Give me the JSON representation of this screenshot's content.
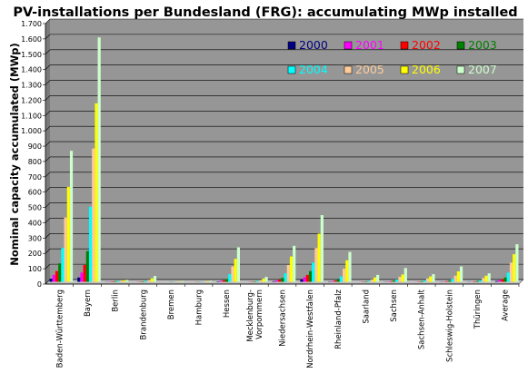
{
  "chart_data": {
    "type": "bar",
    "title": "PV-installations per Bundesland (FRG): accumulating MWp installed",
    "xlabel": "",
    "ylabel": "Nominal capacity accumulated (MWp)",
    "ylim": [
      0,
      1700
    ],
    "yticks": [
      0,
      100,
      200,
      300,
      400,
      500,
      600,
      700,
      800,
      900,
      1000,
      1100,
      1200,
      1300,
      1400,
      1500,
      1600,
      1700
    ],
    "ytick_labels": [
      "0",
      "100",
      "200",
      "300",
      "400",
      "500",
      "600",
      "700",
      "800",
      "900",
      "1.000",
      "1.100",
      "1.200",
      "1.300",
      "1.400",
      "1.500",
      "1.600",
      "1.700"
    ],
    "grid": true,
    "legend_position": "top-right",
    "plot_background": "#969696",
    "categories": [
      [
        "Baden-Württemberg"
      ],
      [
        "Bayern"
      ],
      [
        "Berlin"
      ],
      [
        "Brandenburg"
      ],
      [
        "Bremen"
      ],
      [
        "Hamburg"
      ],
      [
        "Hessen"
      ],
      [
        "Mecklenburg-",
        "Vorpommern"
      ],
      [
        "Niedersachsen"
      ],
      [
        "Nordrhein-Westfalen"
      ],
      [
        "Rheinland-Pfalz"
      ],
      [
        "Saarland"
      ],
      [
        "Sachsen"
      ],
      [
        "Sachsen-Anhalt"
      ],
      [
        "Schleswig-Holstein"
      ],
      [
        "Thüringen"
      ],
      [
        "Average"
      ]
    ],
    "series": [
      {
        "name": "2000",
        "color": "#000080",
        "values": [
          20,
          28,
          1,
          0,
          0,
          0,
          3,
          0,
          4,
          15,
          2,
          0,
          1,
          0,
          1,
          1,
          5
        ]
      },
      {
        "name": "2001",
        "color": "#ff00ff",
        "values": [
          45,
          60,
          2,
          1,
          0,
          0,
          6,
          1,
          8,
          30,
          4,
          1,
          2,
          1,
          2,
          1,
          10
        ]
      },
      {
        "name": "2002",
        "color": "#ff0000",
        "values": [
          70,
          110,
          3,
          2,
          0,
          1,
          10,
          2,
          14,
          45,
          8,
          2,
          4,
          2,
          4,
          3,
          16
        ]
      },
      {
        "name": "2003",
        "color": "#008000",
        "values": [
          120,
          200,
          4,
          3,
          1,
          1,
          18,
          3,
          25,
          70,
          14,
          3,
          7,
          4,
          7,
          5,
          28
        ]
      },
      {
        "name": "2004",
        "color": "#00ffff",
        "values": [
          220,
          490,
          6,
          7,
          1,
          2,
          50,
          6,
          55,
          125,
          35,
          6,
          15,
          10,
          18,
          12,
          60
        ]
      },
      {
        "name": "2005",
        "color": "#ffcc99",
        "values": [
          420,
          870,
          8,
          13,
          2,
          3,
          100,
          12,
          110,
          220,
          85,
          15,
          32,
          22,
          40,
          25,
          125
        ]
      },
      {
        "name": "2006",
        "color": "#ffff00",
        "values": [
          620,
          1165,
          10,
          22,
          3,
          4,
          150,
          20,
          165,
          315,
          140,
          28,
          48,
          35,
          68,
          40,
          180
        ]
      },
      {
        "name": "2007",
        "color": "#ccffcc",
        "values": [
          855,
          1595,
          13,
          38,
          4,
          6,
          225,
          32,
          235,
          435,
          195,
          45,
          90,
          50,
          100,
          55,
          245
        ]
      }
    ]
  }
}
